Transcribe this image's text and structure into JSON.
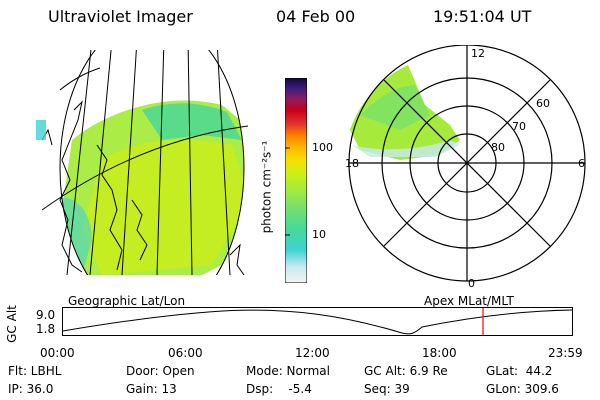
{
  "header": {
    "instrument": "Ultraviolet Imager",
    "date": "04 Feb 00",
    "time": "19:51:04 UT"
  },
  "colorbar": {
    "unit_label": "photon cm⁻²s⁻¹",
    "tick_100": "100",
    "tick_10": "10",
    "colors": [
      "#f3f3f3",
      "#c8e9ef",
      "#3fd3d3",
      "#46d79a",
      "#73e06f",
      "#a6eb3c",
      "#cfef12",
      "#f5e000",
      "#ffb800",
      "#ff7f00",
      "#e03030",
      "#c8001a",
      "#8d1a61",
      "#3a1e7a",
      "#12083a"
    ]
  },
  "geo_map": {
    "title": "Geographic Lat/Lon"
  },
  "polar_plot": {
    "title": "Apex MLat/MLT",
    "mlt_12": "12",
    "mlt_18": "18",
    "mlt_6": "6",
    "mlt_0": "0",
    "lat_60": "60",
    "lat_70": "70",
    "lat_80": "80"
  },
  "orbit": {
    "axis_label": "GC Alt",
    "y_top": "9.0",
    "y_bottom": "1.8",
    "x_ticks": [
      "00:00",
      "06:00",
      "12:00",
      "18:00",
      "23:59"
    ],
    "current_marker_color": "#ff0000"
  },
  "status": {
    "filter": "Flt: LBHL",
    "ip": "IP: 36.0",
    "door": "Door: Open",
    "gain": "Gain: 13",
    "mode": "Mode: Normal",
    "dsp": "Dsp:    -5.4",
    "gc_alt": "GC Alt: 6.9 Re",
    "seq": "Seq: 39",
    "glat": "GLat:  44.2",
    "glon": "GLon: 309.6"
  }
}
